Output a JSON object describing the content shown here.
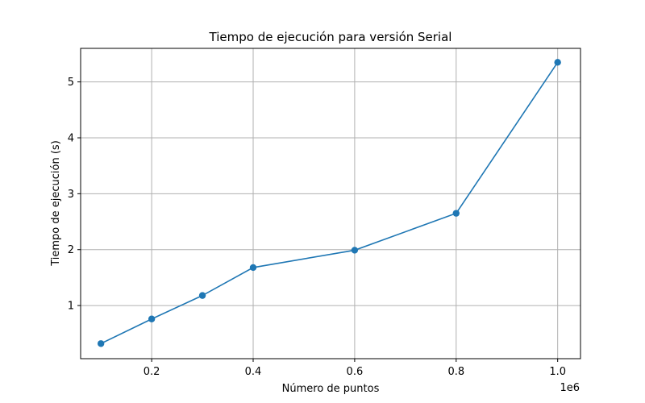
{
  "chart_data": {
    "type": "line",
    "title": "Tiempo de ejecución para versión Serial",
    "xlabel": "Número de puntos",
    "ylabel": "Tiempo de ejecución (s)",
    "x_offset_label": "1e6",
    "x_scale_note": "x tick labels are in units of 1e6",
    "xlim": [
      60000,
      1045000
    ],
    "ylim": [
      0.05,
      5.6
    ],
    "x_ticks": [
      200000,
      400000,
      600000,
      800000,
      1000000
    ],
    "x_tick_labels": [
      "0.2",
      "0.4",
      "0.6",
      "0.8",
      "1.0"
    ],
    "y_ticks": [
      1,
      2,
      3,
      4,
      5
    ],
    "y_tick_labels": [
      "1",
      "2",
      "3",
      "4",
      "5"
    ],
    "grid": true,
    "series": [
      {
        "color": "#1f77b4",
        "marker": "circle",
        "x": [
          100000,
          200000,
          300000,
          400000,
          600000,
          800000,
          1000000
        ],
        "y": [
          0.32,
          0.76,
          1.18,
          1.68,
          1.99,
          2.65,
          5.35
        ]
      }
    ]
  }
}
